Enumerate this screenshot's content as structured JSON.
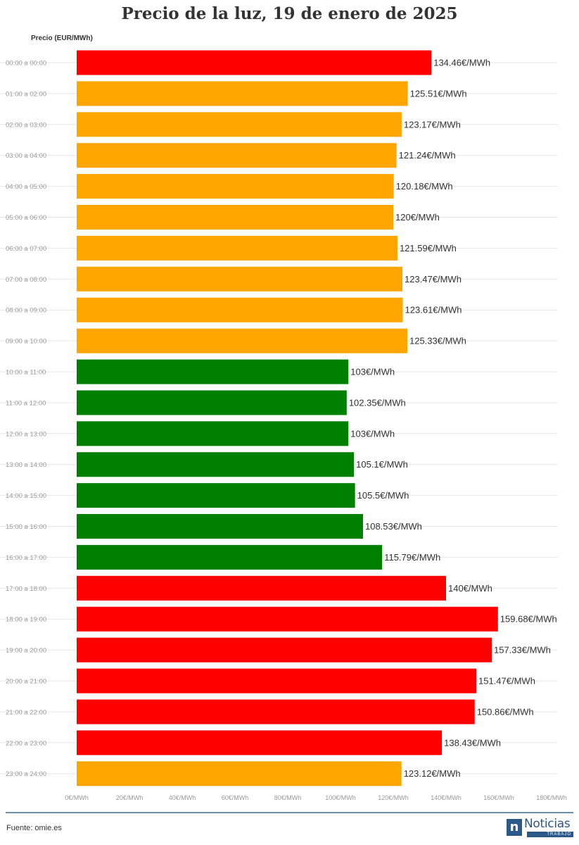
{
  "title": "Precio de la luz, 19 de enero de 2025",
  "source": "Fuente: omie.es",
  "logo": {
    "name": "Noticias",
    "sub": "TRABAJO",
    "mark": "n"
  },
  "colors": {
    "high": "#ff0000",
    "mid": "#ffa500",
    "low": "#008000",
    "grid": "#e6e6e6",
    "axis_text": "#999999",
    "label_text": "#333333"
  },
  "chart_data": {
    "type": "bar",
    "orientation": "horizontal",
    "ylabel": "Precio (EUR/MWh)",
    "xlim": [
      0,
      180
    ],
    "x_ticks": [
      "0€/MWh",
      "20€/MWh",
      "40€/MWh",
      "60€/MWh",
      "80€/MWh",
      "100€/MWh",
      "120€/MWh",
      "140€/MWh",
      "160€/MWh",
      "180€/MWh"
    ],
    "x_tick_values": [
      0,
      20,
      40,
      60,
      80,
      100,
      120,
      140,
      160,
      180
    ],
    "categories": [
      "00:00 a 00:00",
      "01:00 a 02:00",
      "02:00 a 03:00",
      "03:00 a 04:00",
      "04:00 a 05:00",
      "05:00 a 06:00",
      "06:00 a 07:00",
      "07:00 a 08:00",
      "08:00 a 09:00",
      "09:00 a 10:00",
      "10:00 a 11:00",
      "11:00 a 12:00",
      "12:00 a 13:00",
      "13:00 a 14:00",
      "14:00 a 15:00",
      "15:00 a 16:00",
      "16:00 a 17:00",
      "17:00 a 18:00",
      "18:00 a 19:00",
      "19:00 a 20:00",
      "20:00 a 21:00",
      "21:00 a 22:00",
      "22:00 a 23:00",
      "23:00 a 24:00"
    ],
    "values": [
      134.46,
      125.51,
      123.17,
      121.24,
      120.18,
      120,
      121.59,
      123.47,
      123.61,
      125.33,
      103,
      102.35,
      103,
      105.1,
      105.5,
      108.53,
      115.79,
      140,
      159.68,
      157.33,
      151.47,
      150.86,
      138.43,
      123.12
    ],
    "labels": [
      "134.46€/MWh",
      "125.51€/MWh",
      "123.17€/MWh",
      "121.24€/MWh",
      "120.18€/MWh",
      "120€/MWh",
      "121.59€/MWh",
      "123.47€/MWh",
      "123.61€/MWh",
      "125.33€/MWh",
      "103€/MWh",
      "102.35€/MWh",
      "103€/MWh",
      "105.1€/MWh",
      "105.5€/MWh",
      "108.53€/MWh",
      "115.79€/MWh",
      "140€/MWh",
      "159.68€/MWh",
      "157.33€/MWh",
      "151.47€/MWh",
      "150.86€/MWh",
      "138.43€/MWh",
      "123.12€/MWh"
    ],
    "bar_colors": [
      "high",
      "mid",
      "mid",
      "mid",
      "mid",
      "mid",
      "mid",
      "mid",
      "mid",
      "mid",
      "low",
      "low",
      "low",
      "low",
      "low",
      "low",
      "low",
      "high",
      "high",
      "high",
      "high",
      "high",
      "high",
      "mid"
    ],
    "grid": true,
    "legend": "none"
  }
}
